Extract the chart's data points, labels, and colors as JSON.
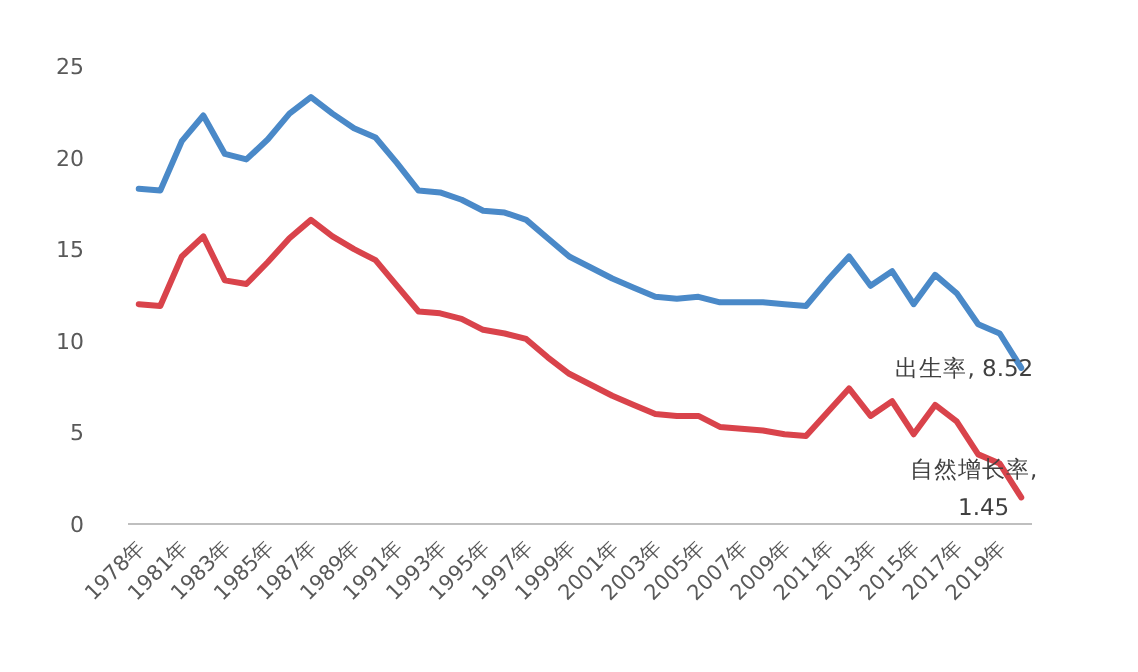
{
  "chart_data": {
    "type": "line",
    "categories": [
      "1978年",
      null,
      "1981年",
      null,
      "1983年",
      null,
      "1985年",
      null,
      "1987年",
      null,
      "1989年",
      null,
      "1991年",
      null,
      "1993年",
      null,
      "1995年",
      null,
      "1997年",
      null,
      "1999年",
      null,
      "2001年",
      null,
      "2003年",
      null,
      "2005年",
      null,
      "2007年",
      null,
      "2009年",
      null,
      "2011年",
      null,
      "2013年",
      null,
      "2015年",
      null,
      "2017年",
      null,
      "2019年",
      null
    ],
    "series": [
      {
        "color": "#4a89c8",
        "values": [
          18.3,
          18.2,
          20.9,
          22.3,
          20.2,
          19.9,
          21.0,
          22.4,
          23.3,
          22.4,
          21.6,
          21.1,
          19.7,
          18.2,
          18.1,
          17.7,
          17.1,
          17.0,
          16.6,
          15.6,
          14.6,
          14.0,
          13.4,
          12.9,
          12.4,
          12.3,
          12.4,
          12.1,
          12.1,
          12.1,
          12.0,
          11.9,
          13.3,
          14.6,
          13.0,
          13.8,
          12.0,
          13.6,
          12.6,
          10.9,
          10.4,
          8.52
        ],
        "value_labels": [
          null,
          null,
          null,
          null,
          null,
          null,
          null,
          null,
          null,
          null,
          null,
          null,
          null,
          null,
          null,
          null,
          null,
          null,
          null,
          null,
          null,
          null,
          null,
          null,
          null,
          null,
          null,
          null,
          null,
          null,
          null,
          null,
          null,
          null,
          null,
          null,
          null,
          null,
          null,
          null,
          null,
          "出生率, 8.52"
        ]
      },
      {
        "color": "#d9434b",
        "values": [
          12.0,
          11.9,
          14.6,
          15.7,
          13.3,
          13.1,
          14.3,
          15.6,
          16.6,
          15.7,
          15.0,
          14.4,
          13.0,
          11.6,
          11.5,
          11.2,
          10.6,
          10.4,
          10.1,
          9.1,
          8.2,
          7.6,
          7.0,
          6.5,
          6.0,
          5.9,
          5.9,
          5.3,
          5.2,
          5.1,
          4.9,
          4.8,
          6.1,
          7.4,
          5.9,
          6.7,
          4.9,
          6.5,
          5.6,
          3.8,
          3.3,
          1.45
        ],
        "value_labels": [
          null,
          null,
          null,
          null,
          null,
          null,
          null,
          null,
          null,
          null,
          null,
          null,
          null,
          null,
          null,
          null,
          null,
          null,
          null,
          null,
          null,
          null,
          null,
          null,
          null,
          null,
          null,
          null,
          null,
          null,
          null,
          null,
          null,
          null,
          null,
          null,
          null,
          null,
          null,
          null,
          null,
          "自然增长率, 1.45"
        ]
      }
    ],
    "ylim": [
      0,
      25
    ],
    "yticks": [
      0,
      5,
      10,
      15,
      20,
      25
    ],
    "grid": false,
    "marker": "none",
    "line_style": "solid"
  }
}
